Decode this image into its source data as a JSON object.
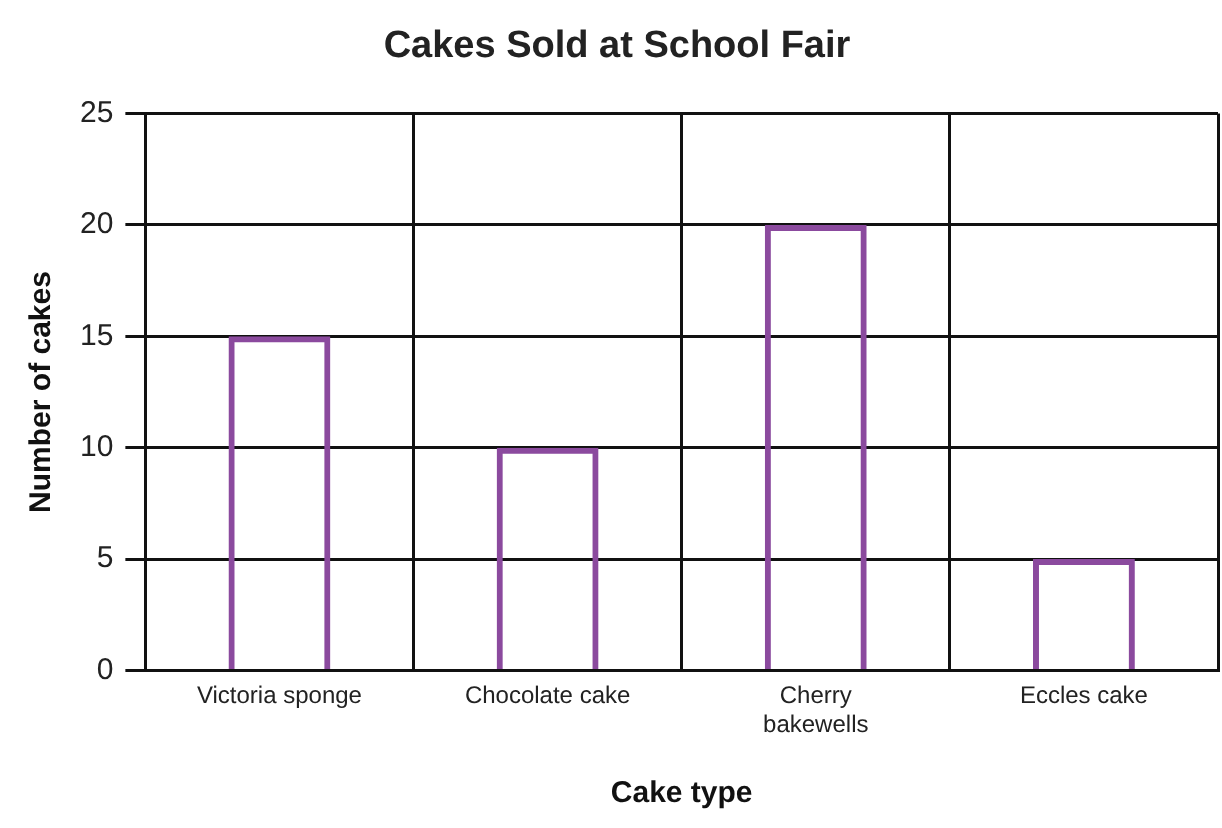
{
  "chart_data": {
    "type": "bar",
    "title": "Cakes Sold at School Fair",
    "xlabel": "Cake type",
    "ylabel": "Number of cakes",
    "categories": [
      "Victoria sponge",
      "Chocolate cake",
      "Cherry bakewells",
      "Eccles cake"
    ],
    "values": [
      15,
      10,
      20,
      5
    ],
    "color": "#8b4a9e",
    "ylim": [
      0,
      25
    ],
    "yticks": [
      0,
      5,
      10,
      15,
      20,
      25
    ],
    "grid": true
  }
}
